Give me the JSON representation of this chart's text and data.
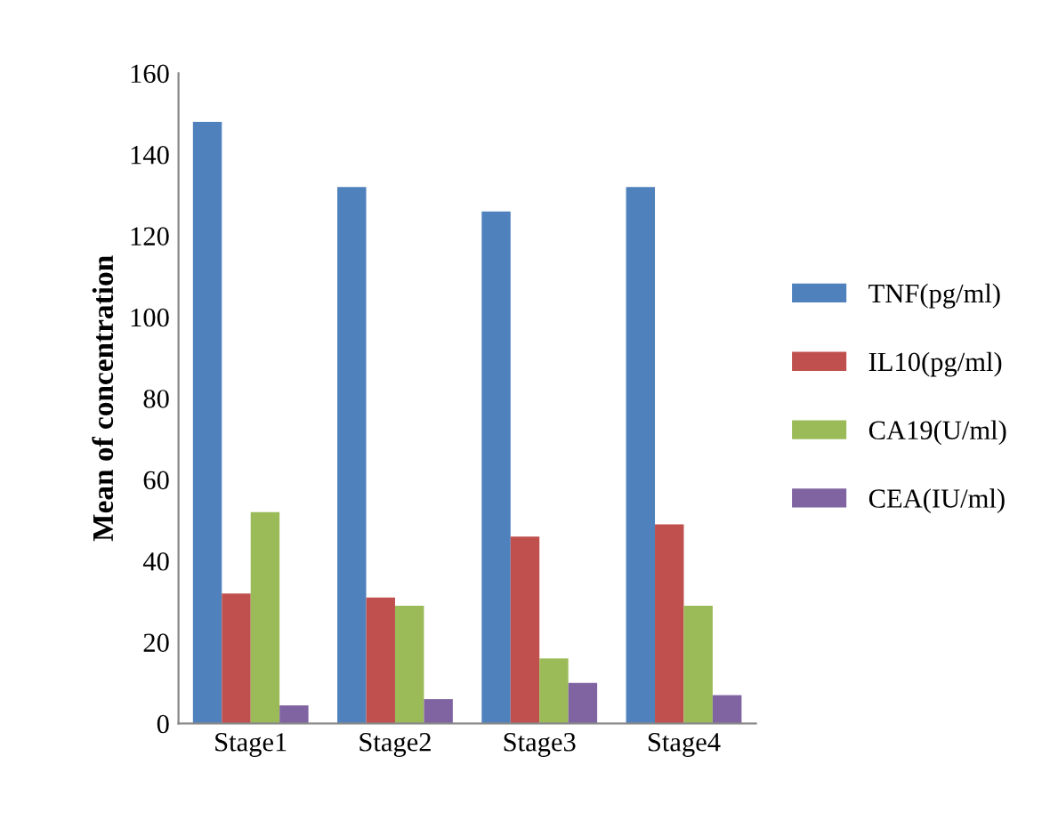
{
  "chart_data": {
    "type": "bar",
    "ylabel": "Mean of concentration",
    "categories": [
      "Stage1",
      "Stage2",
      "Stage3",
      "Stage4"
    ],
    "series": [
      {
        "name": "TNF(pg/ml)",
        "color": "#4f81bd",
        "values": [
          148,
          132,
          126,
          132
        ]
      },
      {
        "name": "IL10(pg/ml)",
        "color": "#c0504d",
        "values": [
          32,
          31,
          46,
          49
        ]
      },
      {
        "name": "CA19(U/ml)",
        "color": "#9bbb59",
        "values": [
          52,
          29,
          16,
          29
        ]
      },
      {
        "name": "CEA(IU/ml)",
        "color": "#8064a2",
        "values": [
          4.5,
          6,
          10,
          7
        ]
      }
    ],
    "ylim": [
      0,
      160
    ],
    "yticks": [
      0,
      20,
      40,
      60,
      80,
      100,
      120,
      140,
      160
    ],
    "legend": "right",
    "grid": false
  }
}
